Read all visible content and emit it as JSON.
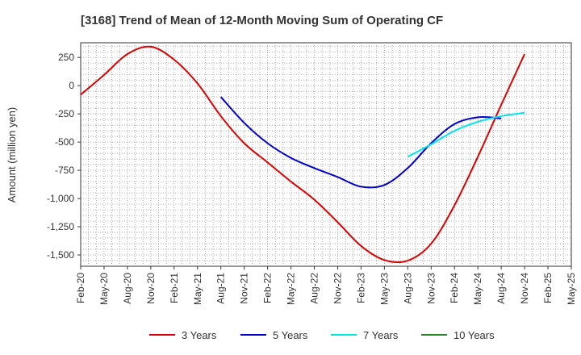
{
  "chart_data": {
    "type": "line",
    "title": "[3168]  Trend of Mean of 12-Month Moving Sum of Operating CF",
    "xlabel": "",
    "ylabel": "Amount (million yen)",
    "ylim": [
      -1600,
      380
    ],
    "yticks": [
      250,
      0,
      -250,
      -500,
      -750,
      -1000,
      -1250,
      -1500
    ],
    "ytick_labels": [
      "250",
      "0",
      "-250",
      "-500",
      "-750",
      "-1,000",
      "-1,250",
      "-1,500"
    ],
    "x_categories": [
      "Feb-20",
      "May-20",
      "Aug-20",
      "Nov-20",
      "Feb-21",
      "May-21",
      "Aug-21",
      "Nov-21",
      "Feb-22",
      "May-22",
      "Aug-22",
      "Nov-22",
      "Feb-23",
      "May-23",
      "Aug-23",
      "Nov-23",
      "Feb-24",
      "May-24",
      "Aug-24",
      "Nov-24",
      "Feb-25",
      "May-25"
    ],
    "grid": true,
    "legend_position": "bottom",
    "series": [
      {
        "name": "3 Years",
        "color": "#dd0000",
        "start_index": 0,
        "values": [
          -80,
          95,
          280,
          345,
          230,
          20,
          -270,
          -510,
          -680,
          -850,
          -1010,
          -1210,
          -1420,
          -1545,
          -1550,
          -1400,
          -1060,
          -630,
          -170,
          280
        ]
      },
      {
        "name": "5 Years",
        "color": "#0000cc",
        "start_index": 6,
        "values": [
          -100,
          -330,
          -510,
          -640,
          -730,
          -810,
          -895,
          -880,
          -730,
          -510,
          -340,
          -280,
          -290
        ]
      },
      {
        "name": "7 Years",
        "color": "#00e5e5",
        "start_index": 14,
        "values": [
          -630,
          -520,
          -400,
          -320,
          -270,
          -240
        ]
      },
      {
        "name": "10 Years",
        "color": "#228b22",
        "start_index": 0,
        "values": []
      }
    ]
  }
}
